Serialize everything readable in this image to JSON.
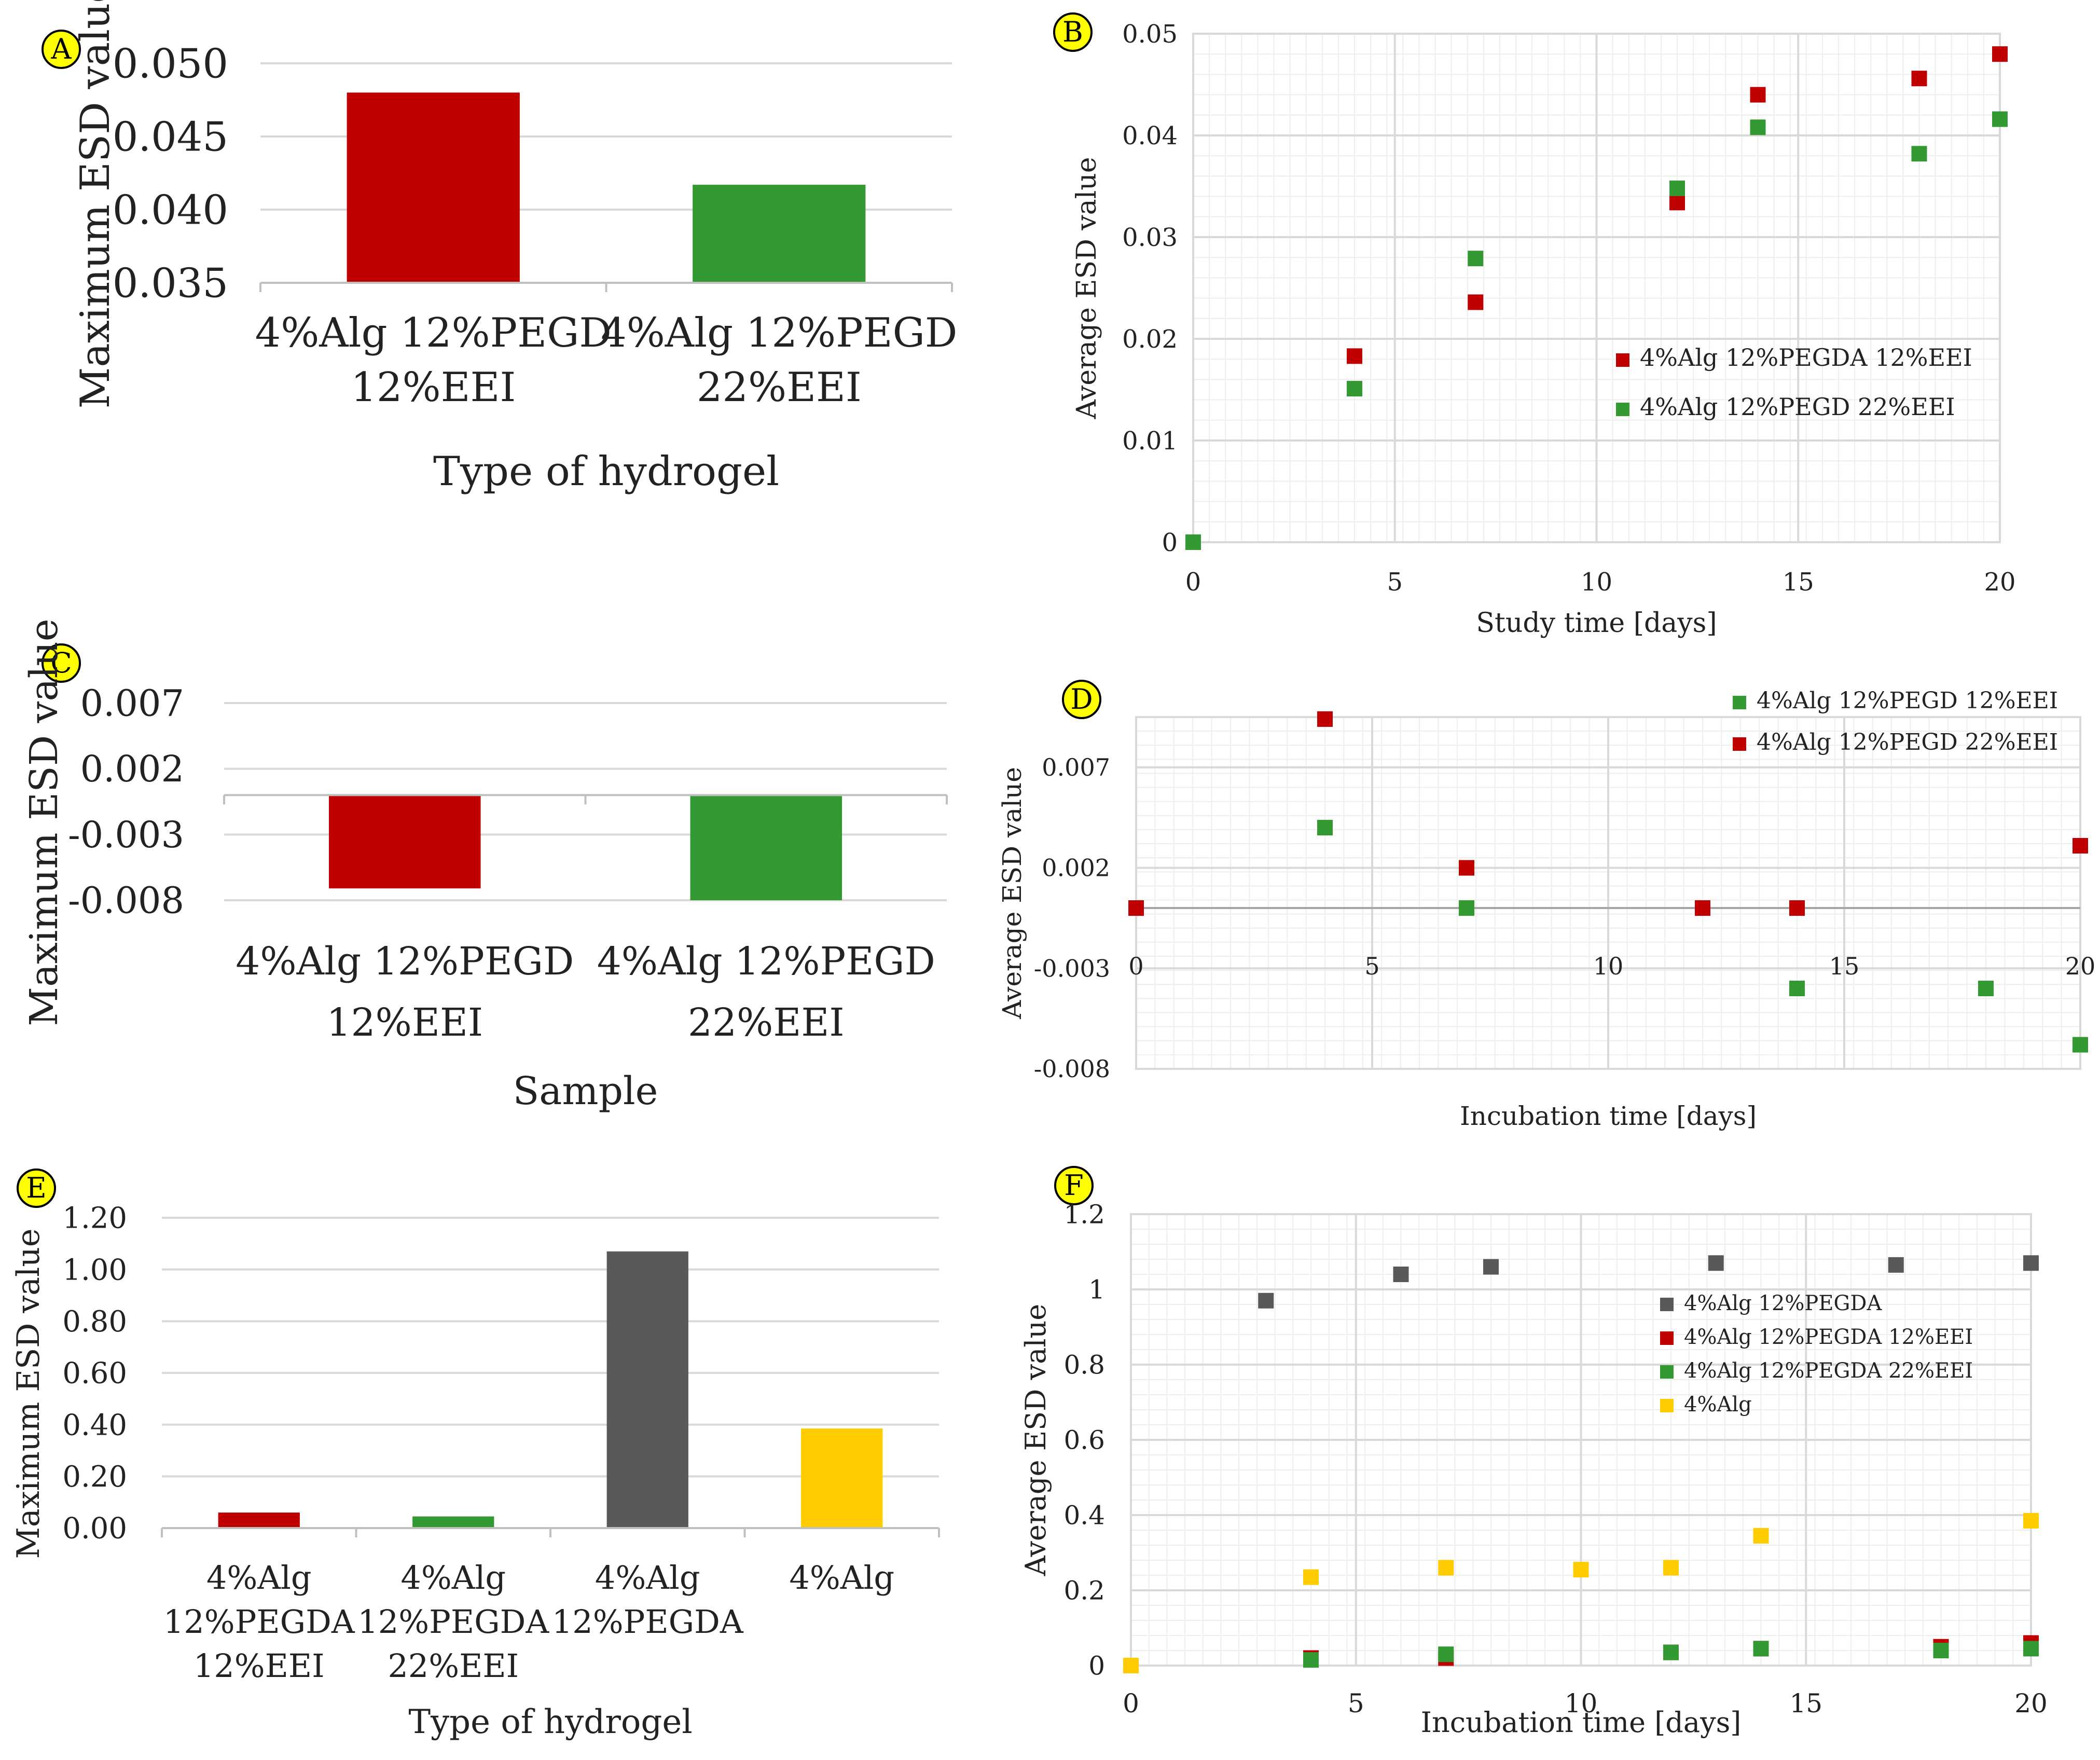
{
  "colors": {
    "red": "#c00000",
    "green": "#339933",
    "gray": "#595959",
    "yellow": "#ffcc00",
    "badge": "#ffff00",
    "grid": "#d9d9d9",
    "minor_grid": "#eeeeee"
  },
  "chart_data": [
    {
      "panel": "A",
      "type": "bar",
      "ylabel": "Maximum ESD value",
      "xlabel": "Type of hydrogel",
      "categories": [
        [
          "4%Alg 12%PEGD",
          "12%EEI"
        ],
        [
          "4%Alg 12%PEGD",
          "22%EEI"
        ]
      ],
      "values": [
        0.048,
        0.0417
      ],
      "bar_colors": [
        "red",
        "green"
      ],
      "ylim": [
        0.035,
        0.05
      ],
      "yticks": [
        "0.035",
        "0.040",
        "0.045",
        "0.050"
      ],
      "grid": true
    },
    {
      "panel": "B",
      "type": "scatter",
      "xlabel": "Study time [days]",
      "ylabel": "Average ESD value",
      "xlim": [
        0,
        20
      ],
      "ylim": [
        0,
        0.05
      ],
      "xticks": [
        "0",
        "5",
        "10",
        "15",
        "20"
      ],
      "yticks": [
        "0",
        "0.01",
        "0.02",
        "0.03",
        "0.04",
        "0.05"
      ],
      "legend": "center-right",
      "series": [
        {
          "name": "4%Alg 12%PEGDA 12%EEI",
          "color": "red",
          "x": [
            0,
            4,
            7,
            12,
            14,
            18,
            20
          ],
          "y": [
            0,
            0.0183,
            0.0236,
            0.0334,
            0.044,
            0.0456,
            0.048
          ]
        },
        {
          "name": "4%Alg 12%PEGD 22%EEI",
          "color": "green",
          "x": [
            0,
            4,
            7,
            12,
            14,
            18,
            20
          ],
          "y": [
            0,
            0.0151,
            0.0279,
            0.0348,
            0.0408,
            0.0382,
            0.0416
          ]
        }
      ]
    },
    {
      "panel": "C",
      "type": "bar",
      "ylabel": "Maximum ESD value",
      "xlabel": "Sample",
      "categories": [
        [
          "4%Alg 12%PEGD",
          "12%EEI"
        ],
        [
          "4%Alg 12%PEGD",
          "22%EEI"
        ]
      ],
      "values": [
        -0.0071,
        -0.008
      ],
      "bar_colors": [
        "red",
        "green"
      ],
      "ylim": [
        -0.008,
        0.007
      ],
      "yticks": [
        "-0.008",
        "-0.003",
        "0.002",
        "0.007"
      ],
      "grid": true
    },
    {
      "panel": "D",
      "type": "scatter",
      "xlabel": "Incubation time [days]",
      "ylabel": "Average ESD value",
      "xlim": [
        0,
        20
      ],
      "ylim": [
        -0.008,
        0.0095
      ],
      "xticks": [
        "0",
        "5",
        "10",
        "15",
        "20"
      ],
      "yticks": [
        "-0.008",
        "-0.003",
        "0.002",
        "0.007"
      ],
      "legend": "top-right",
      "series": [
        {
          "name": "4%Alg 12%PEGD 12%EEI",
          "color": "green",
          "x": [
            0,
            4,
            7,
            14,
            18,
            20
          ],
          "y": [
            0,
            0.004,
            0,
            -0.004,
            -0.004,
            -0.0068
          ]
        },
        {
          "name": "4%Alg 12%PEGD 22%EEI",
          "color": "red",
          "x": [
            0,
            4,
            7,
            12,
            14,
            20
          ],
          "y": [
            0,
            0.0094,
            0.002,
            0,
            0,
            0.0031
          ]
        }
      ]
    },
    {
      "panel": "E",
      "type": "bar",
      "ylabel": "Maximum ESD value",
      "xlabel": "Type of hydrogel",
      "categories": [
        [
          "4%Alg",
          "12%PEGDA",
          "12%EEI"
        ],
        [
          "4%Alg",
          "12%PEGDA",
          "22%EEI"
        ],
        [
          "4%Alg",
          "12%PEGDA"
        ],
        [
          "4%Alg"
        ]
      ],
      "values": [
        0.06,
        0.045,
        1.07,
        0.385
      ],
      "bar_colors": [
        "red",
        "green",
        "gray",
        "yellow"
      ],
      "ylim": [
        0,
        1.2
      ],
      "yticks": [
        "0.00",
        "0.20",
        "0.40",
        "0.60",
        "0.80",
        "1.00",
        "1.20"
      ],
      "grid": true
    },
    {
      "panel": "F",
      "type": "scatter",
      "xlabel": "Incubation time [days]",
      "ylabel": "Average ESD value",
      "xlim": [
        0,
        20
      ],
      "ylim": [
        0,
        1.2
      ],
      "xticks": [
        "0",
        "5",
        "10",
        "15",
        "20"
      ],
      "yticks": [
        "0",
        "0.2",
        "0.4",
        "0.6",
        "0.8",
        "1",
        "1.2"
      ],
      "legend": "center-right",
      "series": [
        {
          "name": "4%Alg 12%PEGDA",
          "color": "gray",
          "x": [
            3,
            6,
            8,
            13,
            17,
            20
          ],
          "y": [
            0.97,
            1.04,
            1.06,
            1.07,
            1.065,
            1.07
          ]
        },
        {
          "name": "4%Alg 12%PEGDA 12%EEI",
          "color": "red",
          "x": [
            0,
            4,
            7,
            12,
            14,
            18,
            20
          ],
          "y": [
            0,
            0.02,
            0.02,
            0.035,
            0.045,
            0.05,
            0.06
          ]
        },
        {
          "name": "4%Alg 12%PEGDA 22%EEI",
          "color": "green",
          "x": [
            0,
            4,
            7,
            12,
            14,
            18,
            20
          ],
          "y": [
            0,
            0.015,
            0.03,
            0.035,
            0.045,
            0.04,
            0.045
          ]
        },
        {
          "name": "4%Alg",
          "color": "yellow",
          "x": [
            0,
            4,
            7,
            10,
            12,
            14,
            20
          ],
          "y": [
            0,
            0.235,
            0.26,
            0.255,
            0.26,
            0.345,
            0.385
          ]
        }
      ]
    }
  ]
}
